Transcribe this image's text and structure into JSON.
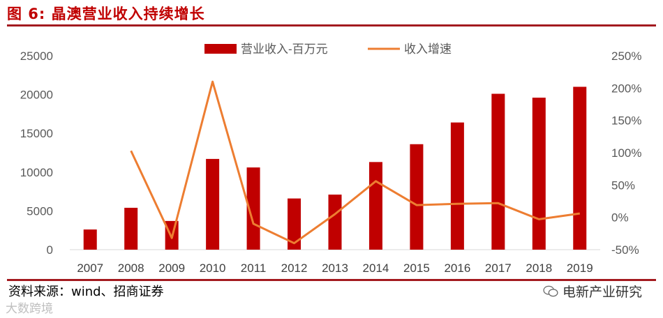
{
  "title": "图 6:  晶澳营业收入持续增长",
  "source": "资料来源：wind、招商证券",
  "watermark_left": "大数跨境",
  "watermark_right": "电新产业研究",
  "colors": {
    "bar": "#c00000",
    "line": "#ed7d31",
    "rule": "#a31a1f",
    "axis_text": "#595959"
  },
  "chart_data": {
    "type": "bar",
    "categories": [
      "2007",
      "2008",
      "2009",
      "2010",
      "2011",
      "2012",
      "2013",
      "2014",
      "2015",
      "2016",
      "2017",
      "2018",
      "2019"
    ],
    "series": [
      {
        "name": "营业收入-百万元",
        "type": "bar",
        "axis": "left",
        "values": [
          2600,
          5400,
          3700,
          11700,
          10600,
          6600,
          7100,
          11300,
          13600,
          16400,
          20100,
          19600,
          21000
        ]
      },
      {
        "name": "收入增速",
        "type": "line",
        "axis": "right",
        "values": [
          null,
          103,
          -32,
          210,
          -10,
          -40,
          5,
          56,
          19,
          21,
          22,
          -3,
          6
        ]
      }
    ],
    "y_left": {
      "min": 0,
      "max": 25000,
      "ticks": [
        "0",
        "5000",
        "10000",
        "15000",
        "20000",
        "25000"
      ]
    },
    "y_right": {
      "min": -50,
      "max": 250,
      "ticks": [
        "-50%",
        "0%",
        "50%",
        "100%",
        "150%",
        "200%",
        "250%"
      ]
    },
    "legend_position": "top-center",
    "grid": false
  }
}
